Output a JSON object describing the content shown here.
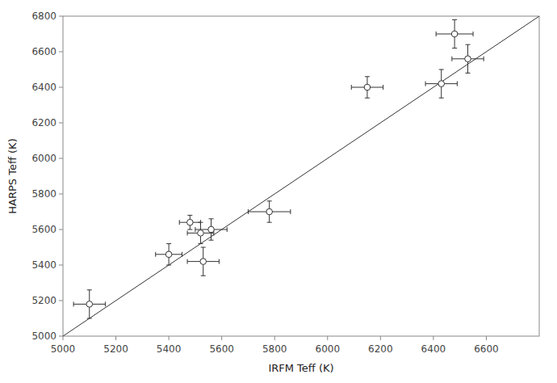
{
  "chart_data": {
    "type": "scatter",
    "xlabel": "IRFM Teff (K)",
    "ylabel": "HARPS Teff (K)",
    "xlim": [
      5000,
      6800
    ],
    "ylim": [
      5000,
      6800
    ],
    "xticks": [
      5000,
      5200,
      5400,
      5600,
      5800,
      6000,
      6200,
      6400,
      6600
    ],
    "yticks": [
      5000,
      5200,
      5400,
      5600,
      5800,
      6000,
      6200,
      6400,
      6600,
      6800
    ],
    "grid": false,
    "series": [
      {
        "type": "line",
        "color": "#333333",
        "x": [
          5000,
          6800
        ],
        "values": [
          5000,
          6800
        ]
      },
      {
        "type": "scatter",
        "color": "#333333",
        "marker": "circle",
        "x": [
          5100,
          5400,
          5480,
          5520,
          5530,
          5560,
          5780,
          6150,
          6430,
          6480,
          6530
        ],
        "values": [
          5180,
          5460,
          5640,
          5580,
          5420,
          5600,
          5700,
          6400,
          6420,
          6700,
          6560
        ],
        "x_err": [
          60,
          50,
          40,
          50,
          60,
          60,
          80,
          60,
          60,
          70,
          60
        ],
        "y_err": [
          80,
          60,
          40,
          60,
          80,
          60,
          60,
          60,
          80,
          80,
          80
        ]
      }
    ]
  }
}
